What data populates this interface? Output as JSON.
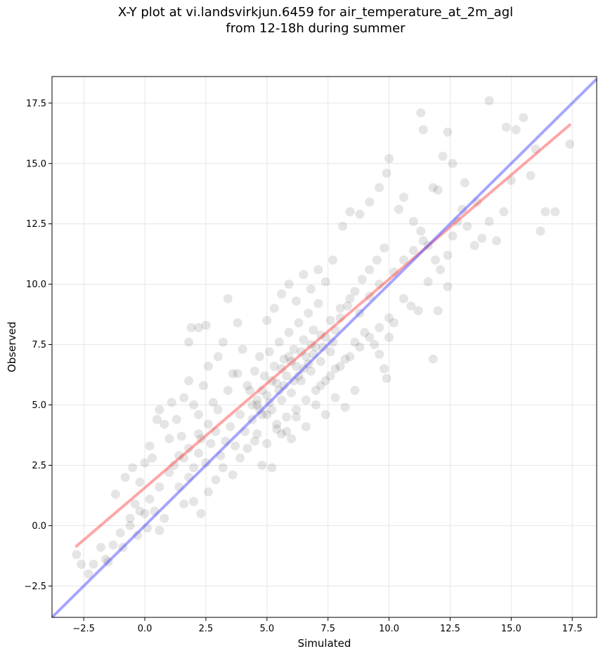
{
  "figure": {
    "title_line1": "X-Y plot at vi.landsvirkjun.6459 for air_temperature_at_2m_agl",
    "title_line2": "from 12-18h during summer"
  },
  "chart_data": {
    "type": "scatter",
    "xlabel": "Simulated",
    "ylabel": "Observed",
    "xlim": [
      -3.8,
      18.5
    ],
    "ylim": [
      -3.8,
      18.6
    ],
    "xticks": [
      "−2.5",
      "0.0",
      "2.5",
      "5.0",
      "7.5",
      "10.0",
      "12.5",
      "15.0",
      "17.5"
    ],
    "yticks": [
      "−2.5",
      "0.0",
      "2.5",
      "5.0",
      "7.5",
      "10.0",
      "12.5",
      "15.0",
      "17.5"
    ],
    "xtick_values": [
      -2.5,
      0,
      2.5,
      5,
      7.5,
      10,
      12.5,
      15,
      17.5
    ],
    "ytick_values": [
      -2.5,
      0,
      2.5,
      5,
      7.5,
      10,
      12.5,
      15,
      17.5
    ],
    "grid": true,
    "point_color": "#000000",
    "points": [
      [
        -2.8,
        -1.2
      ],
      [
        -2.6,
        -1.6
      ],
      [
        -2.3,
        -2.0
      ],
      [
        -2.1,
        -1.6
      ],
      [
        -1.8,
        -0.9
      ],
      [
        -1.6,
        -1.4
      ],
      [
        -1.5,
        -1.5
      ],
      [
        -1.3,
        -0.8
      ],
      [
        -1.0,
        -0.3
      ],
      [
        -0.9,
        -0.9
      ],
      [
        -0.6,
        0.3
      ],
      [
        -0.4,
        0.9
      ],
      [
        -0.3,
        -0.4
      ],
      [
        0.0,
        0.5
      ],
      [
        0.1,
        -0.1
      ],
      [
        0.4,
        0.6
      ],
      [
        0.6,
        -0.2
      ],
      [
        0.8,
        0.3
      ],
      [
        -1.2,
        1.3
      ],
      [
        -0.8,
        2.0
      ],
      [
        -0.5,
        2.4
      ],
      [
        -0.2,
        1.8
      ],
      [
        0.0,
        2.6
      ],
      [
        0.2,
        3.3
      ],
      [
        0.3,
        2.8
      ],
      [
        0.5,
        4.4
      ],
      [
        0.6,
        4.8
      ],
      [
        0.8,
        4.2
      ],
      [
        1.0,
        3.6
      ],
      [
        1.1,
        5.1
      ],
      [
        1.3,
        4.4
      ],
      [
        1.5,
        3.7
      ],
      [
        1.6,
        5.3
      ],
      [
        1.8,
        6.0
      ],
      [
        1.8,
        7.6
      ],
      [
        1.9,
        8.2
      ],
      [
        2.2,
        8.2
      ],
      [
        2.5,
        8.3
      ],
      [
        2.0,
        5.0
      ],
      [
        2.2,
        4.6
      ],
      [
        2.4,
        5.8
      ],
      [
        2.6,
        6.6
      ],
      [
        2.8,
        5.1
      ],
      [
        3.0,
        7.0
      ],
      [
        3.2,
        7.6
      ],
      [
        3.4,
        9.4
      ],
      [
        3.6,
        6.3
      ],
      [
        3.8,
        8.4
      ],
      [
        4.0,
        7.3
      ],
      [
        1.2,
        2.5
      ],
      [
        1.4,
        1.6
      ],
      [
        1.6,
        2.8
      ],
      [
        1.8,
        2.0
      ],
      [
        2.0,
        2.4
      ],
      [
        2.2,
        3.0
      ],
      [
        2.3,
        3.6
      ],
      [
        2.5,
        2.6
      ],
      [
        2.7,
        3.4
      ],
      [
        2.9,
        3.9
      ],
      [
        3.1,
        2.9
      ],
      [
        3.3,
        3.5
      ],
      [
        3.5,
        4.1
      ],
      [
        3.7,
        3.3
      ],
      [
        3.9,
        4.6
      ],
      [
        4.1,
        3.9
      ],
      [
        2.0,
        1.0
      ],
      [
        2.3,
        0.5
      ],
      [
        1.6,
        0.9
      ],
      [
        2.6,
        1.4
      ],
      [
        2.9,
        1.9
      ],
      [
        3.2,
        2.4
      ],
      [
        3.6,
        2.1
      ],
      [
        3.9,
        2.8
      ],
      [
        4.2,
        3.2
      ],
      [
        4.5,
        3.5
      ],
      [
        4.8,
        2.5
      ],
      [
        5.2,
        2.4
      ],
      [
        4.4,
        4.4
      ],
      [
        4.6,
        5.0
      ],
      [
        4.8,
        4.6
      ],
      [
        5.0,
        5.4
      ],
      [
        5.2,
        4.8
      ],
      [
        5.4,
        5.9
      ],
      [
        5.6,
        5.2
      ],
      [
        5.8,
        6.2
      ],
      [
        6.0,
        5.5
      ],
      [
        6.2,
        6.6
      ],
      [
        6.4,
        6.0
      ],
      [
        6.6,
        7.0
      ],
      [
        6.8,
        6.4
      ],
      [
        7.0,
        7.4
      ],
      [
        7.2,
        6.8
      ],
      [
        7.4,
        7.8
      ],
      [
        7.6,
        7.2
      ],
      [
        7.8,
        8.1
      ],
      [
        4.3,
        5.6
      ],
      [
        4.5,
        6.4
      ],
      [
        4.7,
        7.0
      ],
      [
        4.9,
        6.2
      ],
      [
        5.1,
        7.2
      ],
      [
        5.3,
        6.6
      ],
      [
        5.5,
        7.6
      ],
      [
        5.7,
        6.9
      ],
      [
        5.9,
        8.0
      ],
      [
        6.1,
        7.3
      ],
      [
        6.3,
        8.4
      ],
      [
        6.5,
        7.7
      ],
      [
        6.7,
        8.8
      ],
      [
        6.9,
        8.1
      ],
      [
        7.1,
        9.2
      ],
      [
        5.0,
        8.5
      ],
      [
        5.3,
        9.0
      ],
      [
        5.6,
        9.6
      ],
      [
        5.9,
        10.0
      ],
      [
        6.2,
        9.3
      ],
      [
        6.5,
        10.4
      ],
      [
        6.8,
        9.8
      ],
      [
        7.1,
        10.6
      ],
      [
        7.4,
        10.1
      ],
      [
        7.7,
        11.0
      ],
      [
        4.6,
        3.8
      ],
      [
        5.0,
        3.4
      ],
      [
        5.4,
        4.2
      ],
      [
        5.8,
        3.9
      ],
      [
        6.2,
        4.5
      ],
      [
        6.6,
        4.1
      ],
      [
        7.0,
        5.0
      ],
      [
        7.4,
        4.6
      ],
      [
        7.8,
        5.3
      ],
      [
        8.2,
        4.9
      ],
      [
        8.6,
        5.6
      ],
      [
        6.0,
        3.6
      ],
      [
        5.6,
        3.8
      ],
      [
        7.2,
        5.8
      ],
      [
        7.6,
        6.2
      ],
      [
        8.0,
        6.6
      ],
      [
        8.4,
        7.0
      ],
      [
        8.8,
        7.4
      ],
      [
        9.2,
        7.8
      ],
      [
        9.6,
        8.2
      ],
      [
        10.0,
        8.6
      ],
      [
        8.0,
        8.6
      ],
      [
        8.3,
        9.1
      ],
      [
        8.6,
        9.7
      ],
      [
        8.9,
        10.2
      ],
      [
        9.2,
        10.6
      ],
      [
        9.5,
        11.0
      ],
      [
        9.8,
        11.5
      ],
      [
        8.1,
        12.4
      ],
      [
        8.4,
        13.0
      ],
      [
        8.8,
        12.9
      ],
      [
        9.2,
        13.4
      ],
      [
        9.6,
        14.0
      ],
      [
        9.9,
        14.6
      ],
      [
        10.0,
        15.2
      ],
      [
        10.4,
        13.1
      ],
      [
        10.6,
        13.6
      ],
      [
        11.0,
        12.6
      ],
      [
        11.3,
        12.2
      ],
      [
        11.6,
        11.6
      ],
      [
        11.9,
        11.0
      ],
      [
        12.1,
        10.6
      ],
      [
        12.4,
        11.2
      ],
      [
        12.6,
        12.0
      ],
      [
        12.8,
        12.6
      ],
      [
        13.0,
        13.1
      ],
      [
        13.2,
        12.4
      ],
      [
        13.5,
        11.6
      ],
      [
        13.8,
        11.9
      ],
      [
        14.1,
        12.6
      ],
      [
        14.4,
        11.8
      ],
      [
        14.7,
        13.0
      ],
      [
        15.0,
        14.3
      ],
      [
        15.2,
        16.4
      ],
      [
        15.5,
        16.9
      ],
      [
        15.8,
        14.5
      ],
      [
        16.0,
        15.6
      ],
      [
        16.2,
        12.2
      ],
      [
        16.4,
        13.0
      ],
      [
        16.8,
        13.0
      ],
      [
        17.4,
        15.8
      ],
      [
        14.1,
        17.6
      ],
      [
        14.8,
        16.5
      ],
      [
        12.4,
        16.3
      ],
      [
        12.2,
        15.3
      ],
      [
        11.8,
        14.0
      ],
      [
        11.3,
        17.1
      ],
      [
        11.4,
        16.4
      ],
      [
        12.6,
        15.0
      ],
      [
        13.1,
        14.2
      ],
      [
        13.6,
        13.4
      ],
      [
        12.0,
        13.9
      ],
      [
        10.6,
        9.4
      ],
      [
        10.9,
        9.1
      ],
      [
        11.2,
        8.9
      ],
      [
        11.6,
        10.1
      ],
      [
        12.0,
        8.9
      ],
      [
        12.4,
        9.9
      ],
      [
        11.8,
        6.9
      ],
      [
        10.2,
        8.4
      ],
      [
        10.0,
        7.8
      ],
      [
        9.6,
        7.1
      ],
      [
        9.8,
        6.5
      ],
      [
        9.9,
        6.1
      ],
      [
        9.4,
        7.5
      ],
      [
        9.0,
        8.0
      ],
      [
        8.6,
        7.6
      ],
      [
        8.2,
        6.9
      ],
      [
        7.8,
        6.5
      ],
      [
        7.4,
        6.0
      ],
      [
        7.0,
        5.6
      ],
      [
        6.6,
        5.2
      ],
      [
        6.2,
        4.8
      ],
      [
        5.8,
        4.5
      ],
      [
        5.4,
        4.0
      ],
      [
        5.0,
        4.6
      ],
      [
        4.6,
        5.2
      ],
      [
        4.2,
        5.8
      ],
      [
        3.8,
        6.3
      ],
      [
        3.4,
        5.6
      ],
      [
        3.0,
        4.8
      ],
      [
        2.6,
        4.2
      ],
      [
        2.2,
        3.8
      ],
      [
        1.8,
        3.2
      ],
      [
        1.4,
        2.9
      ],
      [
        1.0,
        2.2
      ],
      [
        0.6,
        1.6
      ],
      [
        0.2,
        1.1
      ],
      [
        -0.2,
        0.6
      ],
      [
        -0.6,
        0.0
      ],
      [
        6.0,
        6.8
      ],
      [
        6.4,
        7.2
      ],
      [
        6.8,
        7.5
      ],
      [
        7.2,
        7.9
      ],
      [
        5.2,
        6.0
      ],
      [
        5.6,
        6.5
      ],
      [
        4.4,
        5.0
      ],
      [
        4.8,
        5.6
      ],
      [
        7.6,
        8.5
      ],
      [
        8.0,
        9.0
      ],
      [
        8.4,
        9.4
      ],
      [
        8.8,
        8.8
      ],
      [
        9.2,
        9.5
      ],
      [
        9.6,
        10.0
      ],
      [
        10.2,
        10.5
      ],
      [
        10.6,
        11.0
      ],
      [
        11.0,
        11.4
      ],
      [
        11.4,
        11.8
      ],
      [
        6.3,
        6.2
      ],
      [
        6.7,
        6.7
      ],
      [
        5.5,
        5.6
      ],
      [
        5.1,
        5.1
      ],
      [
        4.7,
        4.8
      ],
      [
        6.9,
        7.1
      ],
      [
        7.3,
        7.4
      ],
      [
        5.9,
        7.0
      ],
      [
        6.1,
        6.0
      ],
      [
        5.7,
        5.8
      ],
      [
        6.5,
        6.5
      ],
      [
        7.7,
        7.6
      ]
    ],
    "fit_line": {
      "name": "",
      "color": "#ff4d4d",
      "x": [
        -2.8,
        17.4
      ],
      "y": [
        -0.85,
        16.6
      ]
    },
    "identity_line": {
      "name": "",
      "color": "#4d4dff",
      "x": [
        -3.8,
        18.5
      ],
      "y": [
        -3.8,
        18.5
      ]
    }
  }
}
